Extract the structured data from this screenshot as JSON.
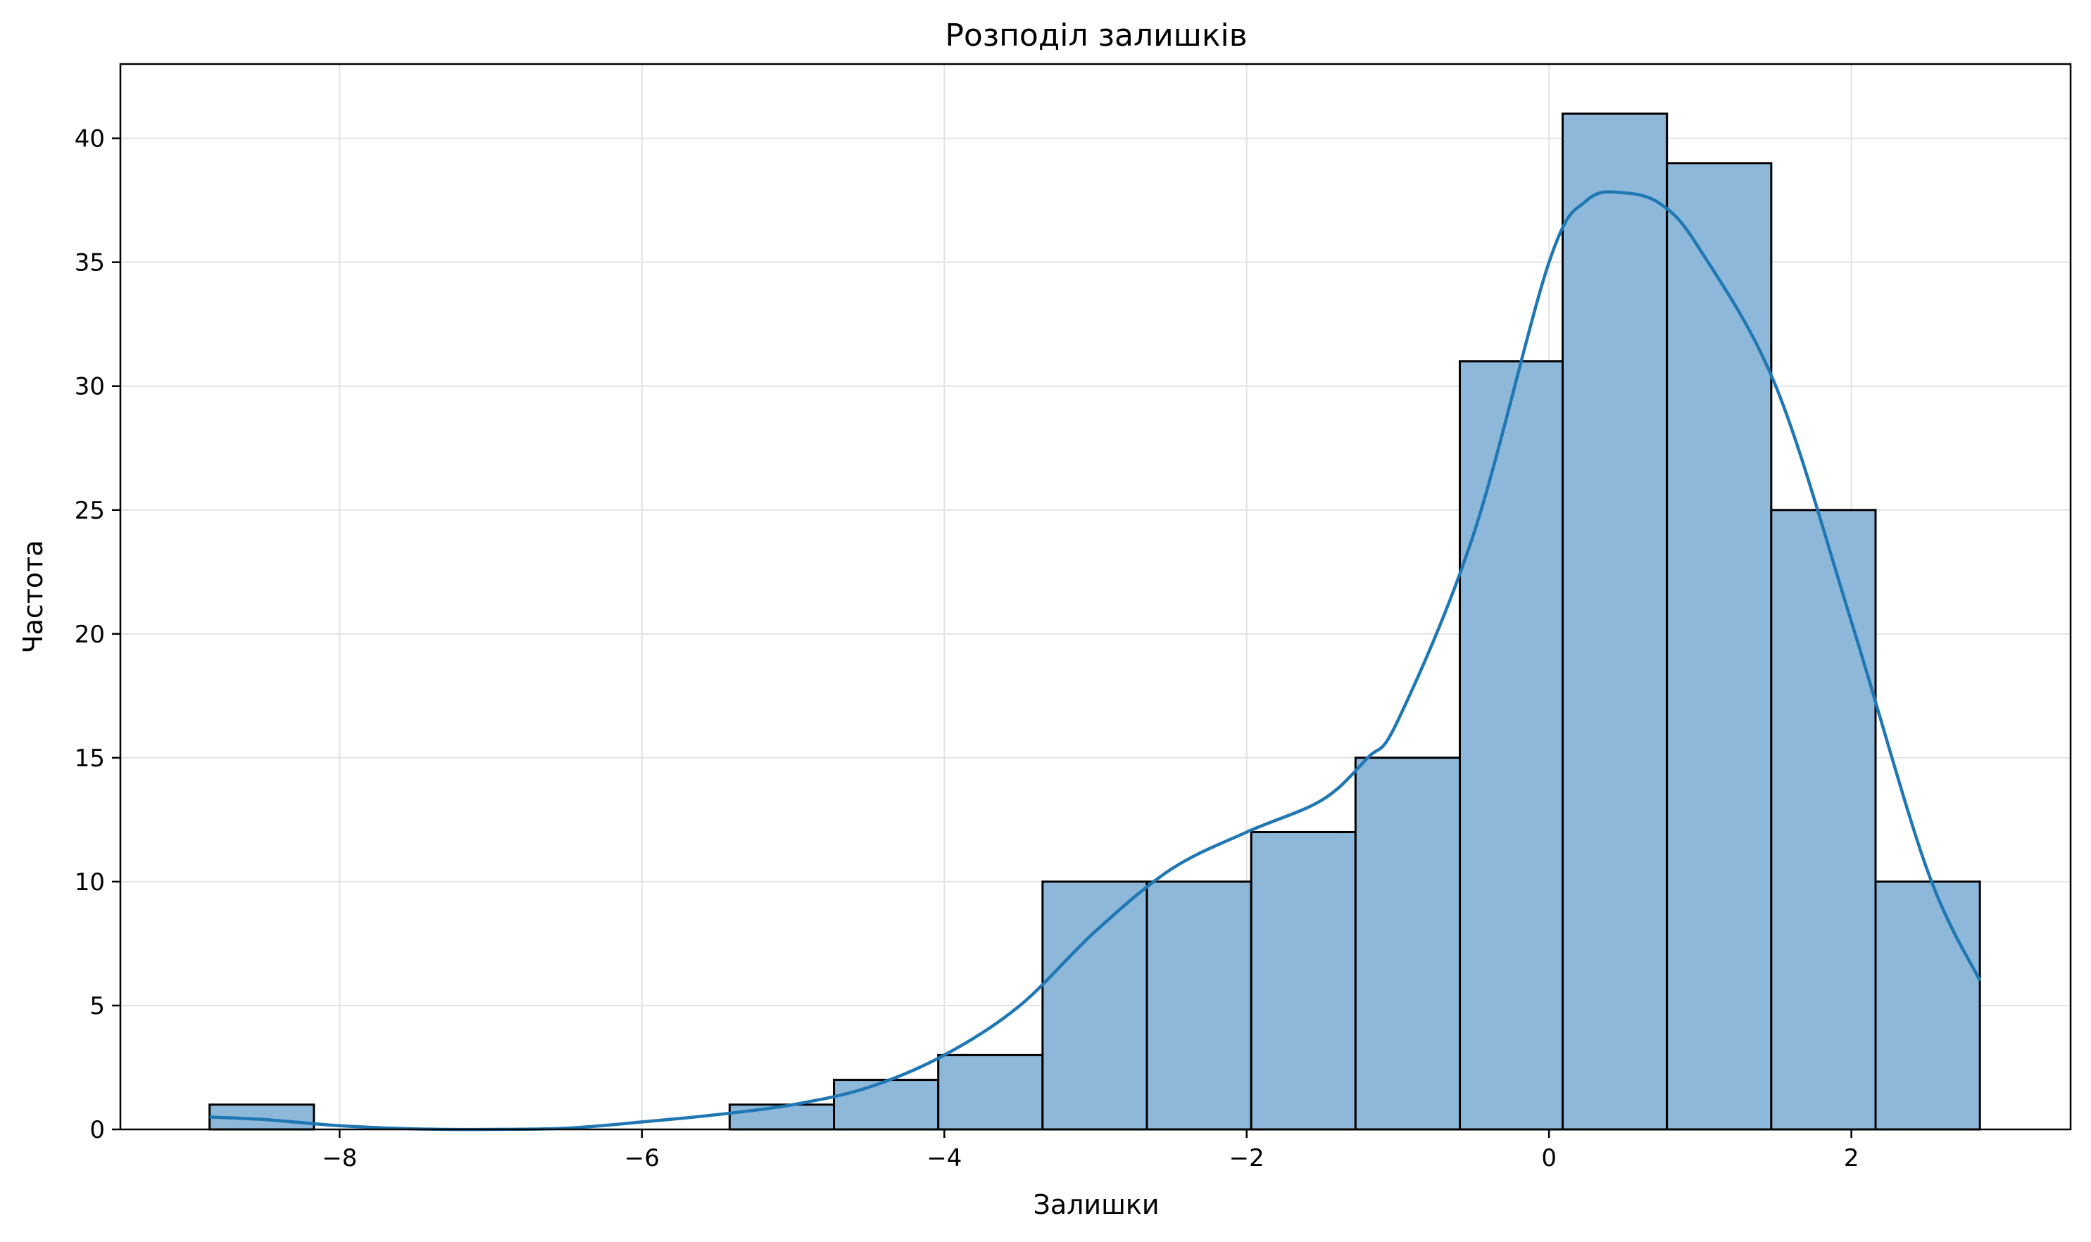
{
  "chart_data": {
    "type": "bar",
    "subtype": "histogram-with-kde",
    "title": "Розподіл залишків",
    "xlabel": "Залишки",
    "ylabel": "Частота",
    "xlim": [
      -9.45,
      3.45
    ],
    "ylim": [
      0,
      43
    ],
    "grid": true,
    "xticks": [
      -8,
      -6,
      -4,
      -2,
      0,
      2
    ],
    "xtick_labels": [
      "−8",
      "−6",
      "−4",
      "−2",
      "0",
      "2"
    ],
    "yticks": [
      0,
      5,
      10,
      15,
      20,
      25,
      30,
      35,
      40
    ],
    "ytick_labels": [
      "0",
      "5",
      "10",
      "15",
      "20",
      "25",
      "30",
      "35",
      "40"
    ],
    "bins": [
      {
        "x0": -8.86,
        "x1": -8.17,
        "count": 1
      },
      {
        "x0": -8.17,
        "x1": -7.48,
        "count": 0
      },
      {
        "x0": -7.48,
        "x1": -6.8,
        "count": 0
      },
      {
        "x0": -6.8,
        "x1": -6.11,
        "count": 0
      },
      {
        "x0": -6.11,
        "x1": -5.42,
        "count": 0
      },
      {
        "x0": -5.42,
        "x1": -4.73,
        "count": 1
      },
      {
        "x0": -4.73,
        "x1": -4.04,
        "count": 2
      },
      {
        "x0": -4.04,
        "x1": -3.35,
        "count": 3
      },
      {
        "x0": -3.35,
        "x1": -2.66,
        "count": 10
      },
      {
        "x0": -2.66,
        "x1": -1.97,
        "count": 10
      },
      {
        "x0": -1.97,
        "x1": -1.28,
        "count": 12
      },
      {
        "x0": -1.28,
        "x1": -0.59,
        "count": 15
      },
      {
        "x0": -0.59,
        "x1": 0.09,
        "count": 31
      },
      {
        "x0": 0.09,
        "x1": 0.78,
        "count": 41
      },
      {
        "x0": 0.78,
        "x1": 1.47,
        "count": 39
      },
      {
        "x0": 1.47,
        "x1": 2.16,
        "count": 25
      },
      {
        "x0": 2.16,
        "x1": 2.85,
        "count": 10
      }
    ],
    "kde": {
      "x": [
        -8.86,
        -8.5,
        -8.0,
        -7.5,
        -7.0,
        -6.5,
        -6.0,
        -5.5,
        -5.0,
        -4.5,
        -4.0,
        -3.5,
        -3.0,
        -2.5,
        -2.0,
        -1.5,
        -1.2,
        -1.0,
        -0.5,
        0.0,
        0.25,
        0.5,
        0.75,
        1.0,
        1.5,
        2.0,
        2.5,
        2.85
      ],
      "y": [
        0.5,
        0.4,
        0.15,
        0.02,
        0.0,
        0.05,
        0.3,
        0.6,
        1.0,
        1.7,
        3.0,
        5.0,
        8.0,
        10.5,
        12.0,
        13.3,
        15.0,
        16.5,
        24.0,
        35.0,
        37.5,
        37.8,
        37.3,
        35.5,
        30.0,
        20.5,
        10.5,
        6.0
      ]
    },
    "colors": {
      "bar_fill": "#8db8da",
      "bar_edge": "#000000",
      "kde_line": "#1f77b4",
      "grid": "#e3e3e3"
    }
  }
}
